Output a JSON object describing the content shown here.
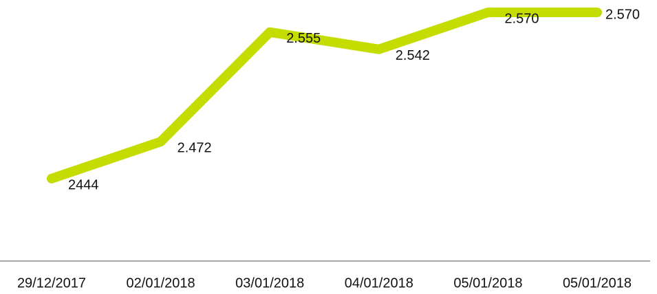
{
  "chart_data": {
    "type": "line",
    "categories": [
      "29/12/2017",
      "02/01/2018",
      "03/01/2018",
      "04/01/2018",
      "05/01/2018",
      "05/01/2018"
    ],
    "series": [
      {
        "color": "#c4dc00",
        "values": [
          2444,
          2472,
          2555,
          2542,
          2570,
          2570
        ],
        "value_labels": [
          "2444",
          "2.472",
          "2.555",
          "2.542",
          "2.570",
          "2.570"
        ]
      }
    ]
  }
}
